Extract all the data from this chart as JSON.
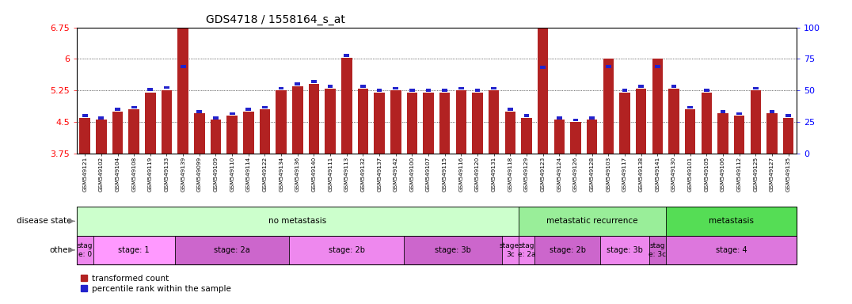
{
  "title": "GDS4718 / 1558164_s_at",
  "samples": [
    "GSM549121",
    "GSM549102",
    "GSM549104",
    "GSM549108",
    "GSM549119",
    "GSM549133",
    "GSM549139",
    "GSM549099",
    "GSM549109",
    "GSM549110",
    "GSM549114",
    "GSM549122",
    "GSM549134",
    "GSM549136",
    "GSM549140",
    "GSM549111",
    "GSM549113",
    "GSM549132",
    "GSM549137",
    "GSM549142",
    "GSM549100",
    "GSM549107",
    "GSM549115",
    "GSM549116",
    "GSM549120",
    "GSM549131",
    "GSM549118",
    "GSM549129",
    "GSM549123",
    "GSM549124",
    "GSM549126",
    "GSM549128",
    "GSM549103",
    "GSM549117",
    "GSM549138",
    "GSM549141",
    "GSM549130",
    "GSM549101",
    "GSM549105",
    "GSM549106",
    "GSM549112",
    "GSM549125",
    "GSM549127",
    "GSM549135"
  ],
  "bar_values": [
    4.6,
    4.55,
    4.75,
    4.8,
    5.2,
    5.25,
    6.72,
    4.7,
    4.55,
    4.65,
    4.75,
    4.8,
    5.25,
    5.35,
    5.4,
    5.3,
    6.02,
    5.3,
    5.2,
    5.25,
    5.2,
    5.2,
    5.2,
    5.25,
    5.2,
    5.25,
    4.75,
    4.6,
    6.72,
    4.55,
    4.5,
    4.55,
    6.0,
    5.2,
    5.3,
    6.0,
    5.3,
    4.8,
    5.2,
    4.7,
    4.65,
    5.25,
    4.7,
    4.6
  ],
  "blue_values": [
    4.65,
    4.6,
    4.8,
    4.85,
    5.27,
    5.32,
    5.82,
    4.75,
    4.6,
    4.7,
    4.8,
    4.85,
    5.3,
    5.4,
    5.46,
    5.35,
    6.08,
    5.35,
    5.25,
    5.3,
    5.25,
    5.25,
    5.25,
    5.3,
    5.25,
    5.3,
    4.8,
    4.65,
    5.8,
    4.6,
    4.55,
    4.6,
    5.82,
    5.25,
    5.35,
    5.82,
    5.35,
    4.85,
    5.25,
    4.75,
    4.7,
    5.3,
    4.75,
    4.65
  ],
  "bar_color": "#B22222",
  "blue_color": "#2222CC",
  "ylim_left": [
    3.75,
    6.75
  ],
  "yticks_left": [
    3.75,
    4.5,
    5.25,
    6.0,
    6.75
  ],
  "ytick_labels_left": [
    "3.75",
    "4.5",
    "5.25",
    "6",
    "6.75"
  ],
  "ylim_right": [
    0,
    100
  ],
  "yticks_right": [
    0,
    25,
    50,
    75,
    100
  ],
  "disease_state_groups": [
    {
      "label": "no metastasis",
      "start": 0,
      "end": 27,
      "color": "#CCFFCC"
    },
    {
      "label": "metastatic recurrence",
      "start": 27,
      "end": 36,
      "color": "#99EE99"
    },
    {
      "label": "metastasis",
      "start": 36,
      "end": 44,
      "color": "#55DD55"
    }
  ],
  "other_groups": [
    {
      "label": "stag\ne: 0",
      "start": 0,
      "end": 1,
      "color": "#EE88EE"
    },
    {
      "label": "stage: 1",
      "start": 1,
      "end": 6,
      "color": "#FF99FF"
    },
    {
      "label": "stage: 2a",
      "start": 6,
      "end": 13,
      "color": "#CC66CC"
    },
    {
      "label": "stage: 2b",
      "start": 13,
      "end": 20,
      "color": "#EE88EE"
    },
    {
      "label": "stage: 3b",
      "start": 20,
      "end": 26,
      "color": "#CC66CC"
    },
    {
      "label": "stage:\n3c",
      "start": 26,
      "end": 27,
      "color": "#EE88EE"
    },
    {
      "label": "stag\ne: 2a",
      "start": 27,
      "end": 28,
      "color": "#EE88EE"
    },
    {
      "label": "stage: 2b",
      "start": 28,
      "end": 32,
      "color": "#CC66CC"
    },
    {
      "label": "stage: 3b",
      "start": 32,
      "end": 35,
      "color": "#EE88EE"
    },
    {
      "label": "stag\ne: 3c",
      "start": 35,
      "end": 36,
      "color": "#CC66CC"
    },
    {
      "label": "stage: 4",
      "start": 36,
      "end": 44,
      "color": "#DD77DD"
    }
  ],
  "legend_items": [
    {
      "label": "transformed count",
      "color": "#B22222"
    },
    {
      "label": "percentile rank within the sample",
      "color": "#2222CC"
    }
  ],
  "disease_label": "disease state",
  "other_label": "other",
  "fig_width": 10.76,
  "fig_height": 3.84,
  "dpi": 100
}
